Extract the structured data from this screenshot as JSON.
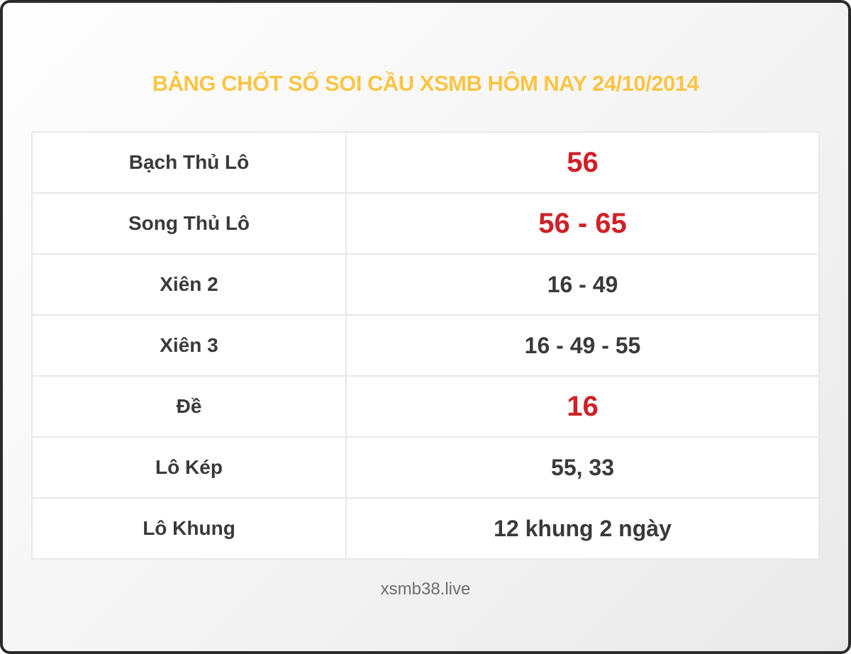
{
  "title": "BẢNG CHỐT SỐ SOI CẦU XSMB HÔM NAY 24/10/2014",
  "table": {
    "rows": [
      {
        "label": "Bạch Thủ Lô",
        "value": "56",
        "highlight": true
      },
      {
        "label": "Song Thủ Lô",
        "value": "56 - 65",
        "highlight": true
      },
      {
        "label": "Xiên 2",
        "value": "16 - 49",
        "highlight": false
      },
      {
        "label": "Xiên 3",
        "value": "16 - 49 - 55",
        "highlight": false
      },
      {
        "label": "Đề",
        "value": "16",
        "highlight": true
      },
      {
        "label": "Lô Kép",
        "value": "55, 33",
        "highlight": false
      },
      {
        "label": "Lô Khung",
        "value": "12 khung 2 ngày",
        "highlight": false
      }
    ]
  },
  "footer": {
    "site": "xsmb38.live"
  },
  "colors": {
    "title": "#FBC545",
    "highlight_value": "#CE2127",
    "text_dark": "#3A3A3A",
    "cell_border": "#E8E8E8",
    "frame_border": "#2B2B2B",
    "footer_text": "#6E6E6E"
  }
}
